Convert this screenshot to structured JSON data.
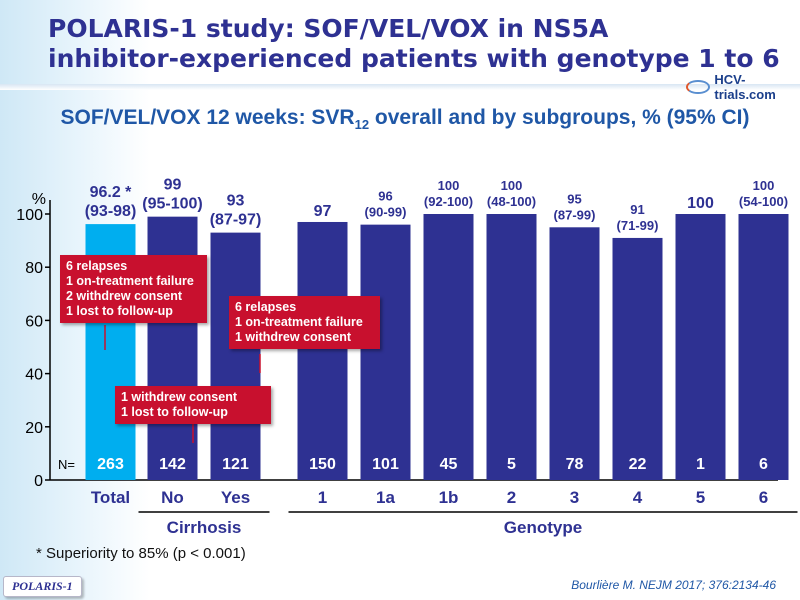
{
  "slide": {
    "title_line1": "POLARIS-1 study: SOF/VEL/VOX in NS5A",
    "title_line2": "inhibitor-experienced patients with genotype 1 to 6",
    "brand": "HCV-trials.com",
    "subtitle_pre": "SOF/VEL/VOX 12 weeks: SVR",
    "subtitle_sub": "12",
    "subtitle_post": " overall and by subgroups, % (95% CI)",
    "footnote": "* Superiority to 85% (p < 0.001)",
    "tag": "POLARIS-1",
    "citation": "Bourlière M. NEJM 2017; 376:2134-46"
  },
  "callouts": [
    {
      "lines": [
        "6 relapses",
        "1 on-treatment failure",
        "2 withdrew consent",
        "1 lost to follow-up"
      ]
    },
    {
      "lines": [
        "6 relapses",
        "1 on-treatment failure",
        "1 withdrew consent"
      ]
    },
    {
      "lines": [
        "1 withdrew consent",
        "1 lost to follow-up"
      ]
    }
  ],
  "chart_data": {
    "type": "bar",
    "ylabel": "%",
    "ylim": [
      0,
      100
    ],
    "yticks": [
      0,
      20,
      40,
      60,
      80,
      100
    ],
    "n_prefix": "N=",
    "categories": [
      "Total",
      "No",
      "Yes",
      "1",
      "1a",
      "1b",
      "2",
      "3",
      "4",
      "5",
      "6"
    ],
    "values": [
      96.2,
      99,
      93,
      97,
      96,
      100,
      100,
      95,
      91,
      100,
      100
    ],
    "value_labels": [
      "96.2 *",
      "99",
      "93",
      "97",
      "96",
      "100",
      "100",
      "95",
      "91",
      "100",
      "100"
    ],
    "ci_labels": [
      "(93-98)",
      "(95-100)",
      "(87-97)",
      "",
      "(90-99)",
      "(92-100)",
      "(48-100)",
      "(87-99)",
      "(71-99)",
      "",
      "(54-100)"
    ],
    "n": [
      263,
      142,
      121,
      150,
      101,
      45,
      5,
      78,
      22,
      1,
      6
    ],
    "groups": [
      {
        "label": "Cirrhosis"
      },
      {
        "label": "Genotype"
      }
    ],
    "colors": {
      "total": "#00aeef",
      "subgroup": "#2e3192",
      "text": "#2e3192",
      "axis": "#000000",
      "callout": "#c8102e"
    }
  }
}
